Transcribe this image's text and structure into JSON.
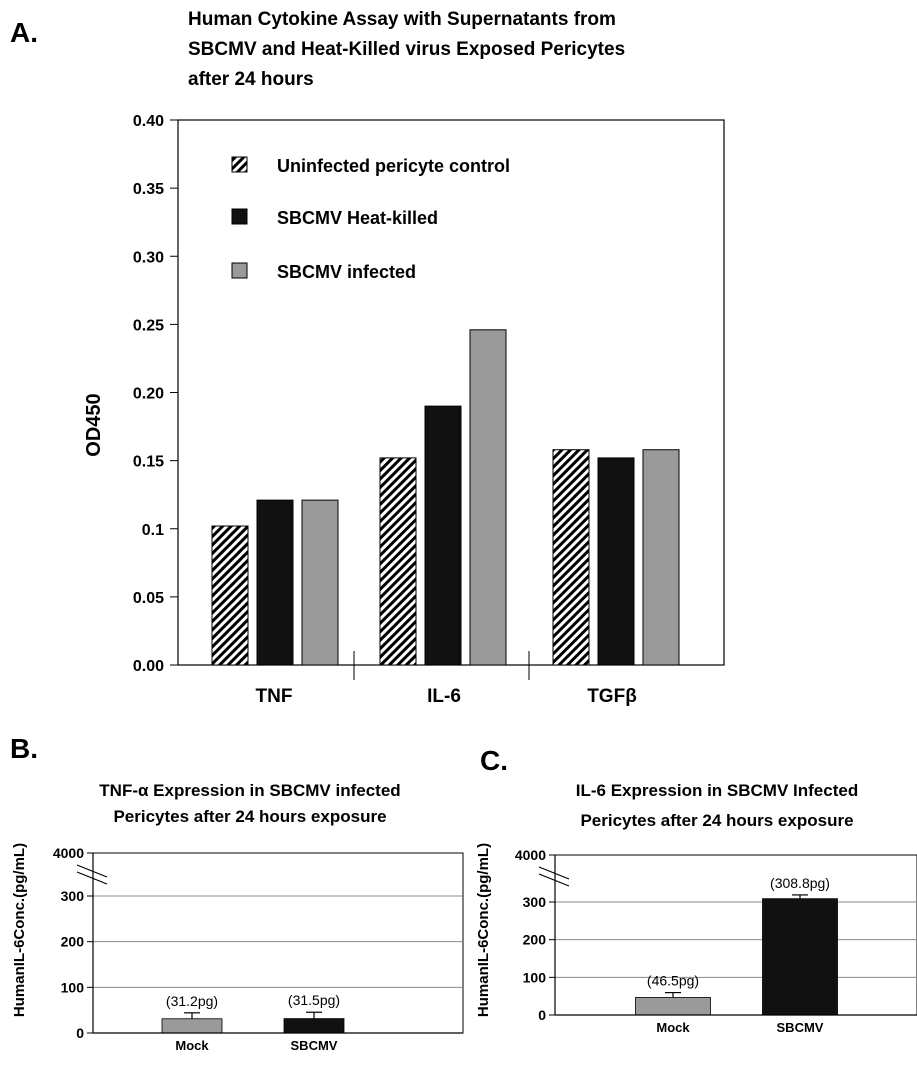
{
  "chart_data": [
    {
      "panel": "A.",
      "type": "bar",
      "title": [
        "Human Cytokine Assay with Supernatants from",
        "SBCMV and Heat-Killed virus Exposed Pericytes",
        "after 24 hours"
      ],
      "ylabel": "OD450",
      "ylim": [
        0,
        0.4
      ],
      "yticks": [
        "0.00",
        "0.05",
        "0.1",
        "0.15",
        "0.20",
        "0.25",
        "0.30",
        "0.35",
        "0.40"
      ],
      "categories": [
        "TNF",
        "IL-6",
        "TGFβ"
      ],
      "legend_position": "top-left",
      "series": [
        {
          "name": "Uninfected pericyte control",
          "values": [
            0.102,
            0.152,
            0.158
          ],
          "fill": "hatch"
        },
        {
          "name": "SBCMV Heat-killed",
          "values": [
            0.121,
            0.19,
            0.152
          ],
          "fill": "#111111"
        },
        {
          "name": "SBCMV infected",
          "values": [
            0.121,
            0.246,
            0.158
          ],
          "fill": "#9a9a9a"
        }
      ]
    },
    {
      "panel": "B.",
      "type": "bar",
      "title": [
        "TNF-α Expression in SBCMV infected",
        "Pericytes after 24 hours exposure"
      ],
      "ylabel": "HumanIL-6Conc.(pg/mL)",
      "ylim": [
        0,
        300
      ],
      "yticks": [
        "0",
        "100",
        "200",
        "300",
        "4000"
      ],
      "axis_break": true,
      "grid": true,
      "categories": [
        "Mock",
        "SBCMV"
      ],
      "values": [
        31.2,
        31.5
      ],
      "errors": [
        13,
        14
      ],
      "data_labels": [
        "(31.2pg)",
        "(31.5pg)"
      ],
      "colors": [
        "#9a9a9a",
        "#111111"
      ]
    },
    {
      "panel": "C.",
      "type": "bar",
      "title": [
        "IL-6 Expression in SBCMV Infected",
        "Pericytes after 24 hours exposure"
      ],
      "ylabel": "HumanIL-6Conc.(pg/mL)",
      "ylim": [
        0,
        300
      ],
      "yticks": [
        "0",
        "100",
        "200",
        "300",
        "4000"
      ],
      "axis_break": true,
      "grid": true,
      "categories": [
        "Mock",
        "SBCMV"
      ],
      "values": [
        46.5,
        308.8
      ],
      "errors": [
        13,
        10
      ],
      "data_labels": [
        "(46.5pg)",
        "(308.8pg)"
      ],
      "colors": [
        "#9a9a9a",
        "#111111"
      ]
    }
  ]
}
